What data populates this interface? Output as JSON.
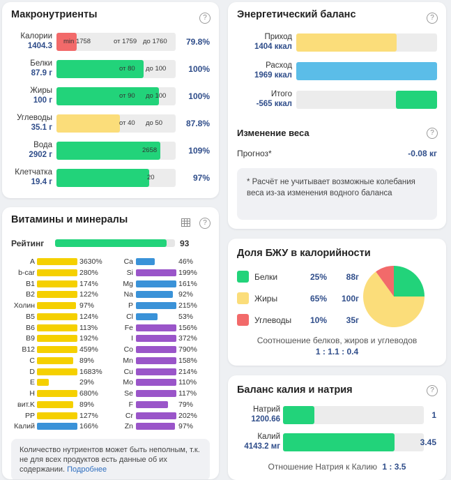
{
  "macro": {
    "title": "Макронутриенты",
    "help": "?",
    "rows": [
      {
        "name": "Калории",
        "value": "1404.3",
        "ticks": [
          "min 1758",
          "от 1759",
          "до 1760"
        ],
        "pct": "79.8%",
        "fill": 0.17,
        "color": "red"
      },
      {
        "name": "Белки",
        "value": "87.9 г",
        "ticks": [
          "от 80",
          "до 100"
        ],
        "pct": "100%",
        "fill": 0.73,
        "color": "green"
      },
      {
        "name": "Жиры",
        "value": "100 г",
        "ticks": [
          "от 90",
          "до 100"
        ],
        "pct": "100%",
        "fill": 0.86,
        "color": "green"
      },
      {
        "name": "Углеводы",
        "value": "35.1 г",
        "ticks": [
          "от 40",
          "до 50"
        ],
        "pct": "87.8%",
        "fill": 0.53,
        "color": "yellow"
      },
      {
        "name": "Вода",
        "value": "2902 г",
        "ticks": [
          "2658"
        ],
        "pct": "109%",
        "fill": 0.87,
        "color": "green"
      },
      {
        "name": "Клетчатка",
        "value": "19.4 г",
        "ticks": [
          "20"
        ],
        "pct": "97%",
        "fill": 0.78,
        "color": "green"
      }
    ]
  },
  "energy": {
    "title": "Энергетический баланс",
    "help": "?",
    "rows": [
      {
        "name": "Приход",
        "value": "1404 ккал",
        "fill": 0.715,
        "color": "yellow"
      },
      {
        "name": "Расход",
        "value": "1969 ккал",
        "fill": 1.0,
        "color": "blue"
      },
      {
        "name": "Итого",
        "value": "-565 ккал",
        "fill": 0.29,
        "color": "green"
      }
    ],
    "weight_title": "Изменение веса",
    "forecast_label": "Прогноз*",
    "forecast_value": "-0.08 кг",
    "note": "* Расчёт не учитывает возможные колебания веса из-за изменения водного баланса"
  },
  "vitamins": {
    "title": "Витамины и минералы",
    "help": "?",
    "rating_label": "Рейтинг",
    "rating_value": "93",
    "rating_fill": 0.93,
    "left": [
      {
        "name": "A",
        "pct": "3630%",
        "fill": 1.0,
        "color": "yellow"
      },
      {
        "name": "b-car",
        "pct": "280%",
        "fill": 1.0,
        "color": "yellow"
      },
      {
        "name": "B1",
        "pct": "174%",
        "fill": 1.0,
        "color": "yellow"
      },
      {
        "name": "B2",
        "pct": "122%",
        "fill": 1.0,
        "color": "yellow"
      },
      {
        "name": "Холин",
        "pct": "97%",
        "fill": 0.97,
        "color": "yellow"
      },
      {
        "name": "B5",
        "pct": "124%",
        "fill": 1.0,
        "color": "yellow"
      },
      {
        "name": "B6",
        "pct": "113%",
        "fill": 1.0,
        "color": "yellow"
      },
      {
        "name": "B9",
        "pct": "192%",
        "fill": 1.0,
        "color": "yellow"
      },
      {
        "name": "B12",
        "pct": "459%",
        "fill": 1.0,
        "color": "yellow"
      },
      {
        "name": "C",
        "pct": "89%",
        "fill": 0.89,
        "color": "yellow"
      },
      {
        "name": "D",
        "pct": "1683%",
        "fill": 1.0,
        "color": "yellow"
      },
      {
        "name": "E",
        "pct": "29%",
        "fill": 0.29,
        "color": "yellow"
      },
      {
        "name": "H",
        "pct": "680%",
        "fill": 1.0,
        "color": "yellow"
      },
      {
        "name": "вит.K",
        "pct": "89%",
        "fill": 0.89,
        "color": "yellow"
      },
      {
        "name": "PP",
        "pct": "127%",
        "fill": 1.0,
        "color": "yellow"
      },
      {
        "name": "Калий",
        "pct": "166%",
        "fill": 1.0,
        "color": "blue"
      }
    ],
    "right": [
      {
        "name": "Ca",
        "pct": "46%",
        "fill": 0.46,
        "color": "blue"
      },
      {
        "name": "Si",
        "pct": "199%",
        "fill": 1.0,
        "color": "purple"
      },
      {
        "name": "Mg",
        "pct": "161%",
        "fill": 1.0,
        "color": "blue"
      },
      {
        "name": "Na",
        "pct": "92%",
        "fill": 0.92,
        "color": "blue"
      },
      {
        "name": "P",
        "pct": "215%",
        "fill": 1.0,
        "color": "blue"
      },
      {
        "name": "Cl",
        "pct": "53%",
        "fill": 0.53,
        "color": "blue"
      },
      {
        "name": "Fe",
        "pct": "156%",
        "fill": 1.0,
        "color": "purple"
      },
      {
        "name": "I",
        "pct": "372%",
        "fill": 1.0,
        "color": "purple"
      },
      {
        "name": "Co",
        "pct": "790%",
        "fill": 1.0,
        "color": "purple"
      },
      {
        "name": "Mn",
        "pct": "158%",
        "fill": 1.0,
        "color": "purple"
      },
      {
        "name": "Cu",
        "pct": "214%",
        "fill": 1.0,
        "color": "purple"
      },
      {
        "name": "Mo",
        "pct": "110%",
        "fill": 1.0,
        "color": "purple"
      },
      {
        "name": "Se",
        "pct": "117%",
        "fill": 1.0,
        "color": "purple"
      },
      {
        "name": "F",
        "pct": "79%",
        "fill": 0.79,
        "color": "purple"
      },
      {
        "name": "Cr",
        "pct": "202%",
        "fill": 1.0,
        "color": "purple"
      },
      {
        "name": "Zn",
        "pct": "97%",
        "fill": 0.97,
        "color": "purple"
      }
    ],
    "note_text": "Количество нутриентов может быть неполным, т.к. не для всех продуктов есть данные об их содержании.",
    "note_link": "Подробнее"
  },
  "bju": {
    "title": "Доля БЖУ в калорийности",
    "rows": [
      {
        "name": "Белки",
        "pct": "25%",
        "grams": "88г",
        "color": "#22d37a"
      },
      {
        "name": "Жиры",
        "pct": "65%",
        "grams": "100г",
        "color": "#fbdd7a"
      },
      {
        "name": "Углеводы",
        "pct": "10%",
        "grams": "35г",
        "color": "#f26a6a"
      }
    ],
    "shares": [
      25,
      65,
      10
    ],
    "ratio_label": "Соотношение белков, жиров и углеводов",
    "ratio_value": "1 : 1.1 : 0.4"
  },
  "kna": {
    "title": "Баланс калия и натрия",
    "help": "?",
    "rows": [
      {
        "name": "Натрий",
        "value": "1200.66",
        "num": "1",
        "fill": 0.225,
        "color": "green"
      },
      {
        "name": "Калий",
        "value": "4143.2 мг",
        "num": "3.45",
        "fill": 0.79,
        "color": "green"
      }
    ],
    "ratio_label": "Отношение Натрия к Калию",
    "ratio_value": "1 : 3.5"
  },
  "colors": {
    "green": "#22d37a",
    "yellow": "#fbdd7a",
    "red": "#f26a6a",
    "blue": "#5bbde8",
    "vyellow": "#f5d000",
    "vblue": "#3a92d8",
    "vpurple": "#9a55c9",
    "accent": "#2f4d8a"
  }
}
